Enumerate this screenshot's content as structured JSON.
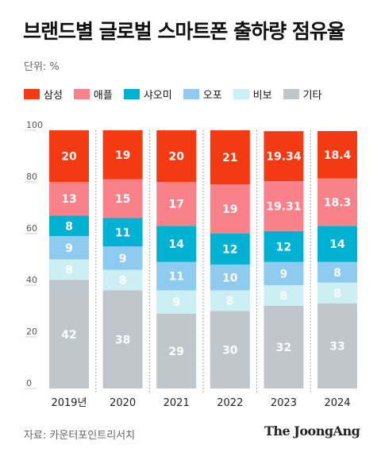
{
  "title": "브랜드별 글로벌 스마트폰 출하량 점유율",
  "unit_label": "단위: %",
  "source": "자료: 카운터포인트리서치",
  "brand": "The JoongAng",
  "colors": {
    "background": "#ffffff",
    "separator": "#8a8a8a"
  },
  "legend": [
    {
      "name": "삼성",
      "color": "#f33a12"
    },
    {
      "name": "애플",
      "color": "#f9828a"
    },
    {
      "name": "샤오미",
      "color": "#00b1d2"
    },
    {
      "name": "오포",
      "color": "#8fcbef"
    },
    {
      "name": "비보",
      "color": "#cceff4"
    },
    {
      "name": "기타",
      "color": "#bfc6cc"
    }
  ],
  "chart_data": {
    "type": "bar",
    "stacked": true,
    "categories": [
      "2019년",
      "2020",
      "2021",
      "2022",
      "2023",
      "2024"
    ],
    "ylim": [
      0,
      100
    ],
    "yticks": [
      0,
      20,
      40,
      60,
      80,
      100
    ],
    "series": [
      {
        "name": "기타",
        "color": "#bfc6cc",
        "values": [
          42,
          38,
          29,
          30,
          32,
          33
        ],
        "labels": [
          "42",
          "38",
          "29",
          "30",
          "32",
          "33"
        ]
      },
      {
        "name": "비보",
        "color": "#cceff4",
        "values": [
          8,
          8,
          9,
          8,
          8,
          8
        ],
        "labels": [
          "8",
          "8",
          "9",
          "8",
          "8",
          "8"
        ]
      },
      {
        "name": "오포",
        "color": "#8fcbef",
        "values": [
          9,
          9,
          11,
          10,
          9,
          8
        ],
        "labels": [
          "9",
          "9",
          "11",
          "10",
          "9",
          "8"
        ]
      },
      {
        "name": "샤오미",
        "color": "#00b1d2",
        "values": [
          8,
          11,
          14,
          12,
          12,
          14
        ],
        "labels": [
          "8",
          "11",
          "14",
          "12",
          "12",
          "14"
        ]
      },
      {
        "name": "애플",
        "color": "#f9828a",
        "values": [
          13,
          15,
          17,
          19,
          19.31,
          18.3
        ],
        "labels": [
          "13",
          "15",
          "17",
          "19",
          "19.31",
          "18.3"
        ]
      },
      {
        "name": "삼성",
        "color": "#f33a12",
        "values": [
          20,
          19,
          20,
          21,
          19.34,
          18.4
        ],
        "labels": [
          "20",
          "19",
          "20",
          "21",
          "19.34",
          "18.4"
        ]
      }
    ]
  }
}
